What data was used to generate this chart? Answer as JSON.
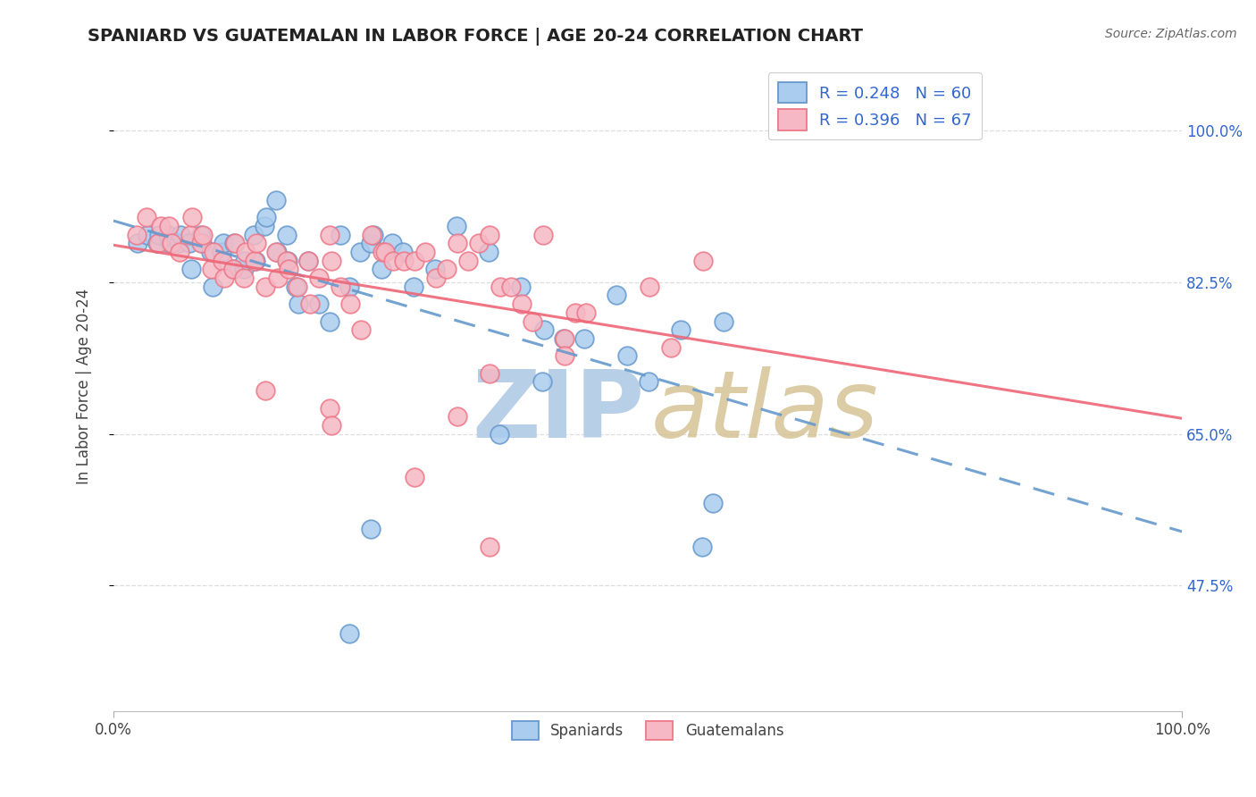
{
  "title": "SPANIARD VS GUATEMALAN IN LABOR FORCE | AGE 20-24 CORRELATION CHART",
  "source": "Source: ZipAtlas.com",
  "ylabel": "In Labor Force | Age 20-24",
  "yticks": [
    0.475,
    0.65,
    0.825,
    1.0
  ],
  "ytick_labels": [
    "47.5%",
    "65.0%",
    "82.5%",
    "100.0%"
  ],
  "xlim": [
    0.0,
    1.0
  ],
  "ylim": [
    0.33,
    1.08
  ],
  "spaniards_R": "0.248",
  "spaniards_N": "60",
  "guatemalans_R": "0.396",
  "guatemalans_N": "67",
  "spaniard_fill": "#aaccee",
  "spaniard_edge": "#6699cc",
  "guatemalan_fill": "#f5b8c4",
  "guatemalan_edge": "#ee7788",
  "trend_spaniard": "#6699cc",
  "trend_guatemalan": "#ee6677",
  "bg": "#ffffff",
  "grid_color": "#dddddd",
  "legend_color": "#3366cc",
  "title_color": "#222222",
  "source_color": "#666666",
  "spaniards": [
    [
      0.023,
      0.87
    ],
    [
      0.032,
      0.88
    ],
    [
      0.041,
      0.87
    ],
    [
      0.043,
      0.88
    ],
    [
      0.051,
      0.88
    ],
    [
      0.053,
      0.87
    ],
    [
      0.061,
      0.87
    ],
    [
      0.063,
      0.88
    ],
    [
      0.071,
      0.87
    ],
    [
      0.073,
      0.84
    ],
    [
      0.082,
      0.88
    ],
    [
      0.083,
      0.87
    ],
    [
      0.091,
      0.86
    ],
    [
      0.093,
      0.82
    ],
    [
      0.101,
      0.86
    ],
    [
      0.103,
      0.87
    ],
    [
      0.112,
      0.84
    ],
    [
      0.113,
      0.87
    ],
    [
      0.122,
      0.84
    ],
    [
      0.123,
      0.85
    ],
    [
      0.131,
      0.88
    ],
    [
      0.133,
      0.85
    ],
    [
      0.141,
      0.89
    ],
    [
      0.143,
      0.9
    ],
    [
      0.152,
      0.92
    ],
    [
      0.153,
      0.86
    ],
    [
      0.162,
      0.88
    ],
    [
      0.163,
      0.85
    ],
    [
      0.171,
      0.82
    ],
    [
      0.173,
      0.8
    ],
    [
      0.182,
      0.85
    ],
    [
      0.192,
      0.8
    ],
    [
      0.202,
      0.78
    ],
    [
      0.212,
      0.88
    ],
    [
      0.221,
      0.82
    ],
    [
      0.231,
      0.86
    ],
    [
      0.241,
      0.87
    ],
    [
      0.243,
      0.88
    ],
    [
      0.251,
      0.84
    ],
    [
      0.261,
      0.87
    ],
    [
      0.271,
      0.86
    ],
    [
      0.281,
      0.82
    ],
    [
      0.301,
      0.84
    ],
    [
      0.321,
      0.89
    ],
    [
      0.351,
      0.86
    ],
    [
      0.361,
      0.65
    ],
    [
      0.381,
      0.82
    ],
    [
      0.401,
      0.71
    ],
    [
      0.403,
      0.77
    ],
    [
      0.421,
      0.76
    ],
    [
      0.441,
      0.76
    ],
    [
      0.471,
      0.81
    ],
    [
      0.481,
      0.74
    ],
    [
      0.501,
      0.71
    ],
    [
      0.531,
      0.77
    ],
    [
      0.551,
      0.52
    ],
    [
      0.561,
      0.57
    ],
    [
      0.571,
      0.78
    ],
    [
      0.221,
      0.42
    ],
    [
      0.241,
      0.54
    ]
  ],
  "guatemalans": [
    [
      0.022,
      0.88
    ],
    [
      0.031,
      0.9
    ],
    [
      0.042,
      0.87
    ],
    [
      0.044,
      0.89
    ],
    [
      0.052,
      0.89
    ],
    [
      0.054,
      0.87
    ],
    [
      0.062,
      0.86
    ],
    [
      0.072,
      0.88
    ],
    [
      0.074,
      0.9
    ],
    [
      0.082,
      0.87
    ],
    [
      0.084,
      0.88
    ],
    [
      0.092,
      0.84
    ],
    [
      0.094,
      0.86
    ],
    [
      0.102,
      0.85
    ],
    [
      0.104,
      0.83
    ],
    [
      0.112,
      0.84
    ],
    [
      0.114,
      0.87
    ],
    [
      0.122,
      0.83
    ],
    [
      0.124,
      0.86
    ],
    [
      0.132,
      0.85
    ],
    [
      0.134,
      0.87
    ],
    [
      0.142,
      0.82
    ],
    [
      0.152,
      0.86
    ],
    [
      0.154,
      0.83
    ],
    [
      0.162,
      0.85
    ],
    [
      0.164,
      0.84
    ],
    [
      0.172,
      0.82
    ],
    [
      0.182,
      0.85
    ],
    [
      0.184,
      0.8
    ],
    [
      0.192,
      0.83
    ],
    [
      0.202,
      0.88
    ],
    [
      0.204,
      0.85
    ],
    [
      0.212,
      0.82
    ],
    [
      0.222,
      0.8
    ],
    [
      0.232,
      0.77
    ],
    [
      0.242,
      0.88
    ],
    [
      0.252,
      0.86
    ],
    [
      0.254,
      0.86
    ],
    [
      0.262,
      0.85
    ],
    [
      0.272,
      0.85
    ],
    [
      0.282,
      0.85
    ],
    [
      0.292,
      0.86
    ],
    [
      0.302,
      0.83
    ],
    [
      0.312,
      0.84
    ],
    [
      0.322,
      0.87
    ],
    [
      0.332,
      0.85
    ],
    [
      0.342,
      0.87
    ],
    [
      0.352,
      0.88
    ],
    [
      0.362,
      0.82
    ],
    [
      0.372,
      0.82
    ],
    [
      0.382,
      0.8
    ],
    [
      0.402,
      0.88
    ],
    [
      0.422,
      0.76
    ],
    [
      0.432,
      0.79
    ],
    [
      0.442,
      0.79
    ],
    [
      0.352,
      0.72
    ],
    [
      0.502,
      0.82
    ],
    [
      0.522,
      0.75
    ],
    [
      0.552,
      0.85
    ],
    [
      0.142,
      0.7
    ],
    [
      0.202,
      0.68
    ],
    [
      0.204,
      0.66
    ],
    [
      0.282,
      0.6
    ],
    [
      0.322,
      0.67
    ],
    [
      0.352,
      0.52
    ],
    [
      0.392,
      0.78
    ],
    [
      0.422,
      0.74
    ]
  ]
}
